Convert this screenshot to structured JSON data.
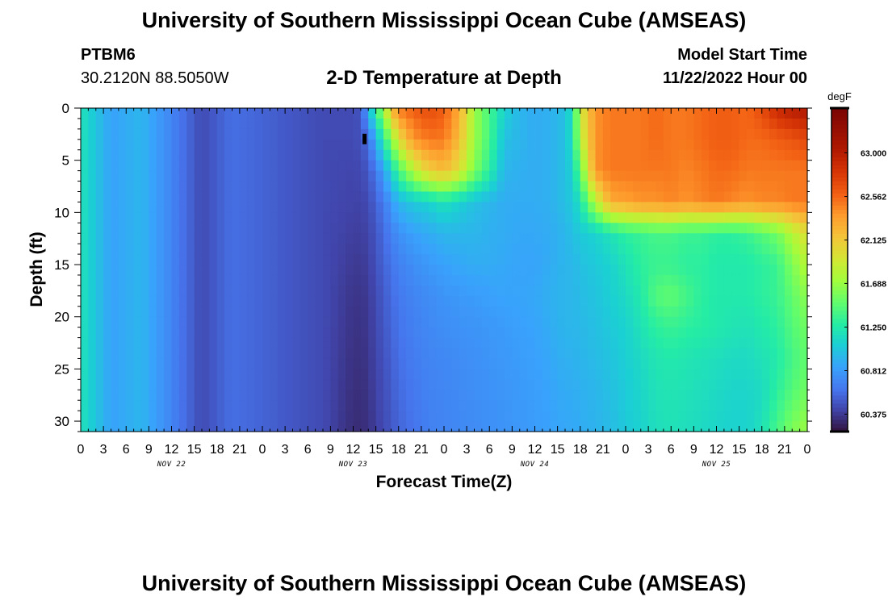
{
  "header": {
    "title": "University of Southern Mississippi Ocean Cube (AMSEAS)",
    "station": "PTBM6",
    "coordinates": "30.2120N  88.5050W",
    "subtitle": "2-D Temperature at Depth",
    "model_start_label": "Model Start Time",
    "model_start_value": "11/22/2022 Hour 00"
  },
  "footer": {
    "title": "University of Southern Mississippi Ocean Cube (AMSEAS)"
  },
  "chart_data": {
    "type": "heatmap",
    "title": "2-D Temperature at Depth",
    "xlabel": "Forecast Time(Z)",
    "ylabel": "Depth (ft)",
    "x_ticks": [
      "0",
      "3",
      "6",
      "9",
      "12",
      "15",
      "18",
      "21",
      "0",
      "3",
      "6",
      "9",
      "12",
      "15",
      "18",
      "21",
      "0",
      "3",
      "6",
      "9",
      "12",
      "15",
      "18",
      "21",
      "0",
      "3",
      "6",
      "9",
      "12",
      "15",
      "18",
      "21",
      "0"
    ],
    "x_hours": [
      0,
      3,
      6,
      9,
      12,
      15,
      18,
      21,
      24,
      27,
      30,
      33,
      36,
      39,
      42,
      45,
      48,
      51,
      54,
      57,
      60,
      63,
      66,
      69,
      72,
      75,
      78,
      81,
      84,
      87,
      90,
      93,
      96
    ],
    "xlim": [
      0,
      96
    ],
    "date_labels": [
      {
        "label": "NOV 22",
        "hour": 12
      },
      {
        "label": "NOV 23",
        "hour": 36
      },
      {
        "label": "NOV 24",
        "hour": 60
      },
      {
        "label": "NOV 25",
        "hour": 84
      }
    ],
    "y_ticks": [
      "0",
      "5",
      "10",
      "15",
      "20",
      "25",
      "30"
    ],
    "y_values": [
      0,
      5,
      10,
      15,
      20,
      25,
      30
    ],
    "ylim": [
      0,
      31
    ],
    "y_inverted": true,
    "colorbar": {
      "unit": "degF",
      "tick_labels": [
        "63.000",
        "62.562",
        "62.125",
        "61.688",
        "61.250",
        "60.812",
        "60.375"
      ],
      "tick_values": [
        63.0,
        62.562,
        62.125,
        61.688,
        61.25,
        60.812,
        60.375
      ],
      "range": [
        60.2,
        63.45
      ]
    },
    "hours": [
      0,
      4,
      8,
      12,
      16,
      20,
      24,
      28,
      32,
      36,
      37,
      38,
      39,
      40,
      41,
      42,
      44,
      46,
      48,
      50,
      52,
      54,
      56,
      58,
      60,
      62,
      64,
      65,
      66,
      68,
      70,
      72,
      74,
      76,
      78,
      80,
      82,
      84,
      86,
      88,
      90,
      92,
      94,
      96
    ],
    "depths": [
      0,
      3,
      6,
      9,
      12,
      15,
      18,
      21,
      24,
      27,
      31
    ],
    "temperature_profiles": [
      [
        61.2,
        61.2,
        61.2,
        61.2,
        61.2,
        61.2,
        61.2,
        61.2,
        61.2,
        61.2,
        61.2
      ],
      [
        60.85,
        60.85,
        60.85,
        60.85,
        60.85,
        60.85,
        60.85,
        60.85,
        60.85,
        60.85,
        60.85
      ],
      [
        60.95,
        60.95,
        60.95,
        60.95,
        60.95,
        60.95,
        60.95,
        60.95,
        60.95,
        60.95,
        60.95
      ],
      [
        60.7,
        60.7,
        60.7,
        60.7,
        60.7,
        60.7,
        60.7,
        60.7,
        60.7,
        60.7,
        60.7
      ],
      [
        60.45,
        60.45,
        60.45,
        60.45,
        60.45,
        60.45,
        60.45,
        60.45,
        60.45,
        60.45,
        60.45
      ],
      [
        60.6,
        60.6,
        60.6,
        60.6,
        60.6,
        60.6,
        60.6,
        60.6,
        60.6,
        60.6,
        60.6
      ],
      [
        60.55,
        60.55,
        60.55,
        60.55,
        60.55,
        60.55,
        60.55,
        60.55,
        60.55,
        60.55,
        60.55
      ],
      [
        60.5,
        60.5,
        60.5,
        60.5,
        60.5,
        60.5,
        60.5,
        60.5,
        60.5,
        60.5,
        60.5
      ],
      [
        60.45,
        60.45,
        60.45,
        60.45,
        60.45,
        60.45,
        60.45,
        60.45,
        60.45,
        60.45,
        60.45
      ],
      [
        60.45,
        60.45,
        60.43,
        60.42,
        60.4,
        60.38,
        60.36,
        60.35,
        60.34,
        60.33,
        60.32
      ],
      [
        60.5,
        60.48,
        60.45,
        60.42,
        60.4,
        60.38,
        60.36,
        60.35,
        60.34,
        60.33,
        60.32
      ],
      [
        60.9,
        60.6,
        60.5,
        60.45,
        60.42,
        60.4,
        60.38,
        60.37,
        60.36,
        60.35,
        60.34
      ],
      [
        61.4,
        60.9,
        60.65,
        60.55,
        60.5,
        60.48,
        60.45,
        60.44,
        60.43,
        60.42,
        60.4
      ],
      [
        61.7,
        61.3,
        60.85,
        60.65,
        60.58,
        60.55,
        60.52,
        60.5,
        60.48,
        60.46,
        60.45
      ],
      [
        62.2,
        61.6,
        61.1,
        60.8,
        60.68,
        60.62,
        60.58,
        60.56,
        60.54,
        60.52,
        60.5
      ],
      [
        62.5,
        62.0,
        61.4,
        60.95,
        60.76,
        60.68,
        60.64,
        60.62,
        60.6,
        60.58,
        60.56
      ],
      [
        62.6,
        62.4,
        61.8,
        61.05,
        60.85,
        60.75,
        60.7,
        60.68,
        60.66,
        60.64,
        60.62
      ],
      [
        62.7,
        62.5,
        62.1,
        61.1,
        60.9,
        60.8,
        60.74,
        60.72,
        60.7,
        60.69,
        60.68
      ],
      [
        62.6,
        62.5,
        62.2,
        61.2,
        60.95,
        60.85,
        60.78,
        60.75,
        60.72,
        60.71,
        60.7
      ],
      [
        62.3,
        62.2,
        62.0,
        61.1,
        60.95,
        60.88,
        60.8,
        60.77,
        60.74,
        60.73,
        60.72
      ],
      [
        61.7,
        61.7,
        61.6,
        61.0,
        60.95,
        60.9,
        60.82,
        60.78,
        60.76,
        60.75,
        60.74
      ],
      [
        61.4,
        61.4,
        61.3,
        60.95,
        60.92,
        60.9,
        60.84,
        60.8,
        60.78,
        60.77,
        60.76
      ],
      [
        61.1,
        61.0,
        60.95,
        60.9,
        60.9,
        60.88,
        60.86,
        60.82,
        60.8,
        60.79,
        60.78
      ],
      [
        60.95,
        60.95,
        60.92,
        60.9,
        60.88,
        60.86,
        60.86,
        60.84,
        60.82,
        60.81,
        60.8
      ],
      [
        60.9,
        60.9,
        60.9,
        60.9,
        60.88,
        60.86,
        60.88,
        60.86,
        60.84,
        60.83,
        60.82
      ],
      [
        60.92,
        60.92,
        60.92,
        60.92,
        60.9,
        60.9,
        60.92,
        60.9,
        60.88,
        60.86,
        60.85
      ],
      [
        61.0,
        61.0,
        61.0,
        61.0,
        60.95,
        60.95,
        60.95,
        60.95,
        60.92,
        60.9,
        60.88
      ],
      [
        61.2,
        61.2,
        61.1,
        61.05,
        61.0,
        60.95,
        60.95,
        60.95,
        60.93,
        60.9,
        60.88
      ],
      [
        61.9,
        61.8,
        61.5,
        61.2,
        61.05,
        61.0,
        60.98,
        60.96,
        60.94,
        60.92,
        60.9
      ],
      [
        62.4,
        62.4,
        62.4,
        61.8,
        61.1,
        61.05,
        61.02,
        61.0,
        60.98,
        60.95,
        60.93
      ],
      [
        62.5,
        62.5,
        62.5,
        62.3,
        61.2,
        61.1,
        61.08,
        61.05,
        61.02,
        61.0,
        60.98
      ],
      [
        62.5,
        62.5,
        62.5,
        62.35,
        61.3,
        61.2,
        61.15,
        61.1,
        61.08,
        61.06,
        61.05
      ],
      [
        62.5,
        62.5,
        62.5,
        62.4,
        61.35,
        61.3,
        61.25,
        61.2,
        61.15,
        61.12,
        61.1
      ],
      [
        62.55,
        62.55,
        62.5,
        62.4,
        61.4,
        61.35,
        61.45,
        61.3,
        61.22,
        61.2,
        61.18
      ],
      [
        62.5,
        62.5,
        62.5,
        62.45,
        61.4,
        61.35,
        61.5,
        61.35,
        61.25,
        61.22,
        61.2
      ],
      [
        62.5,
        62.5,
        62.45,
        62.4,
        61.35,
        61.3,
        61.4,
        61.3,
        61.22,
        61.2,
        61.18
      ],
      [
        62.55,
        62.55,
        62.5,
        62.45,
        61.35,
        61.3,
        61.3,
        61.28,
        61.2,
        61.18,
        61.15
      ],
      [
        62.6,
        62.6,
        62.55,
        62.5,
        61.3,
        61.25,
        61.25,
        61.25,
        61.18,
        61.15,
        61.12
      ],
      [
        62.6,
        62.6,
        62.55,
        62.45,
        61.3,
        61.25,
        61.25,
        61.22,
        61.15,
        61.12,
        61.1
      ],
      [
        62.55,
        62.55,
        62.5,
        62.4,
        61.35,
        61.25,
        61.25,
        61.2,
        61.15,
        61.12,
        61.1
      ],
      [
        62.7,
        62.55,
        62.5,
        62.45,
        61.45,
        61.3,
        61.3,
        61.25,
        61.2,
        61.15,
        61.2
      ],
      [
        62.9,
        62.6,
        62.5,
        62.45,
        61.55,
        61.35,
        61.35,
        61.3,
        61.25,
        61.3,
        61.4
      ],
      [
        63.0,
        62.65,
        62.5,
        62.5,
        61.8,
        61.6,
        61.5,
        61.45,
        61.4,
        61.45,
        61.6
      ],
      [
        63.05,
        62.7,
        62.5,
        62.5,
        62.0,
        61.8,
        61.65,
        61.55,
        61.5,
        61.55,
        61.7
      ]
    ],
    "marker": {
      "hour": 37.5,
      "depth": 3
    }
  }
}
